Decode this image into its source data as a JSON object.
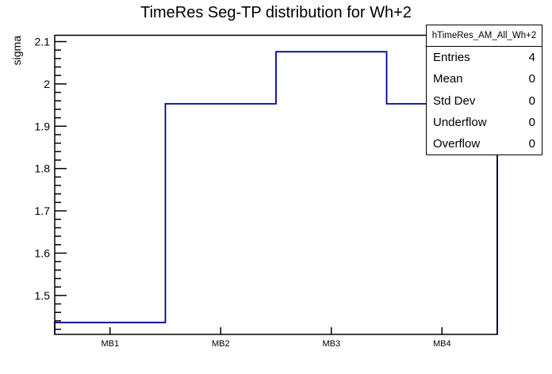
{
  "title": "TimeRes Seg-TP distribution for Wh+2",
  "y_axis_title": "sigma",
  "stats_box": {
    "header": "hTimeRes_AM_All_Wh+2",
    "rows": [
      {
        "label": "Entries",
        "value": "4"
      },
      {
        "label": "Mean",
        "value": "0"
      },
      {
        "label": "Std Dev",
        "value": "0"
      },
      {
        "label": "Underflow",
        "value": "0"
      },
      {
        "label": "Overflow",
        "value": "0"
      }
    ]
  },
  "chart_data": {
    "type": "bar",
    "style": "step-outline-histogram",
    "categories": [
      "MB1",
      "MB2",
      "MB3",
      "MB4"
    ],
    "values": [
      1.436,
      1.953,
      2.076,
      1.953
    ],
    "title": "TimeRes Seg-TP distribution for Wh+2",
    "xlabel": "",
    "ylabel": "sigma",
    "ylim": [
      1.408,
      2.115
    ],
    "y_major_ticks": [
      1.5,
      1.6,
      1.7,
      1.8,
      1.9,
      2.0,
      2.1
    ],
    "y_minor_step": 0.02,
    "grid": false,
    "legend": "none",
    "line_color": "#000099",
    "frame_color": "#000000",
    "background_color": "#ffffff"
  }
}
